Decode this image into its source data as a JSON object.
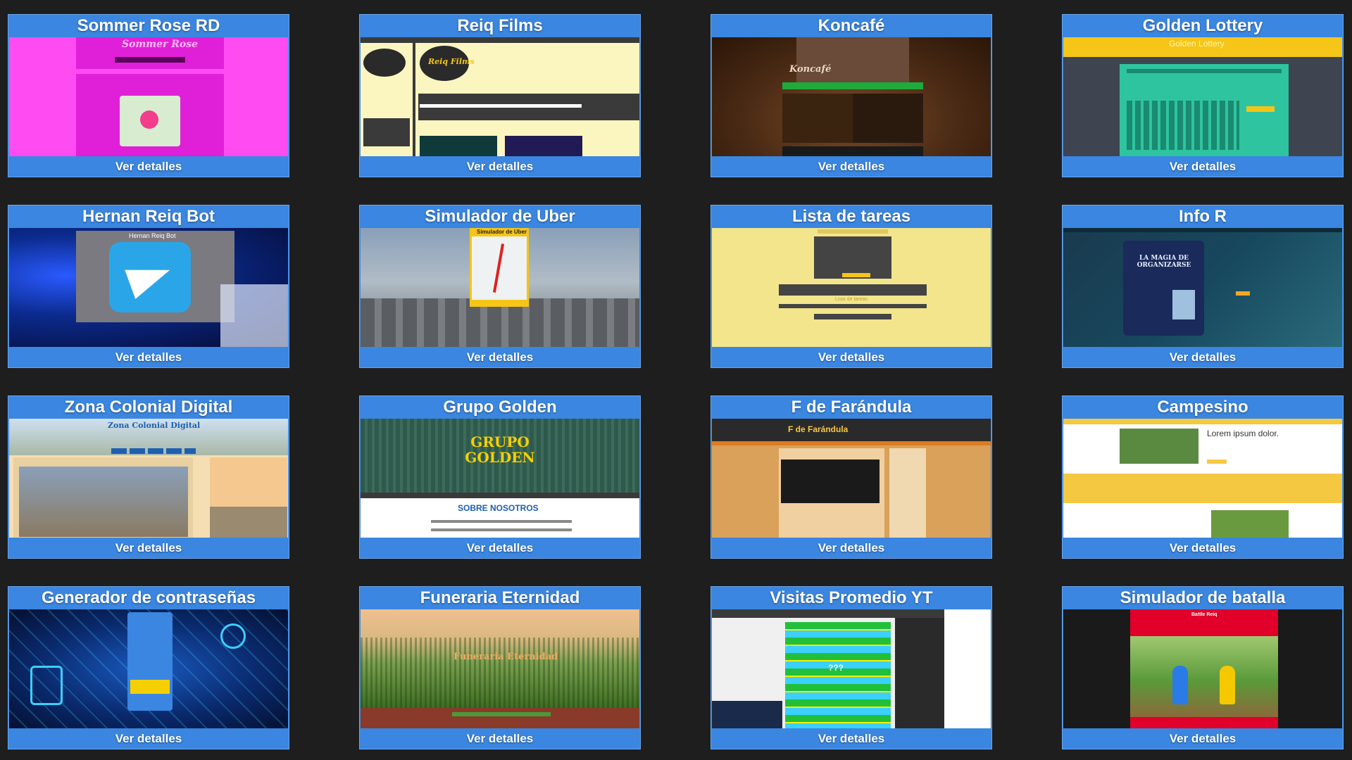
{
  "footer_label": "Ver detalles",
  "projects": [
    {
      "title": "Sommer Rose RD",
      "preview_text": "Sommer Rose",
      "colors": {
        "bg": "#ff4cf2",
        "accent": "#e020d8"
      }
    },
    {
      "title": "Reiq Films",
      "preview_text": "Reiq Films",
      "colors": {
        "bg": "#fbf6c0",
        "accent": "#3a3a3a"
      }
    },
    {
      "title": "Koncafé",
      "preview_text": "Koncafé",
      "colors": {
        "bg": "#5a3620",
        "accent": "#1faa3c"
      }
    },
    {
      "title": "Golden Lottery",
      "preview_text": "Golden Lottery",
      "colors": {
        "bg": "#3e4450",
        "accent": "#f5c518"
      }
    },
    {
      "title": "Hernan Reiq Bot",
      "preview_text": "Hernan Reiq Bot",
      "colors": {
        "bg": "#0b2a8c",
        "accent": "#2aa6e8"
      }
    },
    {
      "title": "Simulador de Uber",
      "preview_text": "Simulador de Uber",
      "colors": {
        "bg": "#6b7a88",
        "accent": "#f5c518"
      }
    },
    {
      "title": "Lista de tareas",
      "preview_text": "Lista de tareas",
      "colors": {
        "bg": "#f2e58c",
        "accent": "#444444"
      }
    },
    {
      "title": "Info R",
      "preview_text": "LA MAGIA DE ORGANIZARSE",
      "colors": {
        "bg": "#17485e",
        "accent": "#f5a623"
      }
    },
    {
      "title": "Zona Colonial Digital",
      "preview_text": "Zona Colonial Digital",
      "colors": {
        "bg": "#f5deb3",
        "accent": "#1e5fb0"
      }
    },
    {
      "title": "Grupo Golden",
      "preview_text": "GRUPO GOLDEN",
      "sub_text": "SOBRE NOSOTROS",
      "colors": {
        "bg": "#2e5a4e",
        "accent": "#f5d000"
      }
    },
    {
      "title": "F de Farándula",
      "preview_text": "F de Farándula",
      "colors": {
        "bg": "#d9a15a",
        "accent": "#3a3a3a"
      }
    },
    {
      "title": "Campesino",
      "preview_text": "Lorem ipsum dolor.",
      "colors": {
        "bg": "#ffffff",
        "accent": "#f5c842"
      }
    },
    {
      "title": "Generador de contraseñas",
      "preview_text": "",
      "colors": {
        "bg": "#0a2a6e",
        "accent": "#3ad0ff"
      }
    },
    {
      "title": "Funeraria Eternidad",
      "preview_text": "Funeraria Eternidad",
      "colors": {
        "bg": "#5a8a30",
        "accent": "#f0a860"
      }
    },
    {
      "title": "Visitas Promedio YT",
      "preview_text": "???",
      "colors": {
        "bg": "#ffffff",
        "accent": "#22c03a"
      }
    },
    {
      "title": "Simulador de batalla",
      "preview_text": "Battle Reiq",
      "colors": {
        "bg": "#e0002a",
        "accent": "#2a8a30"
      }
    }
  ]
}
